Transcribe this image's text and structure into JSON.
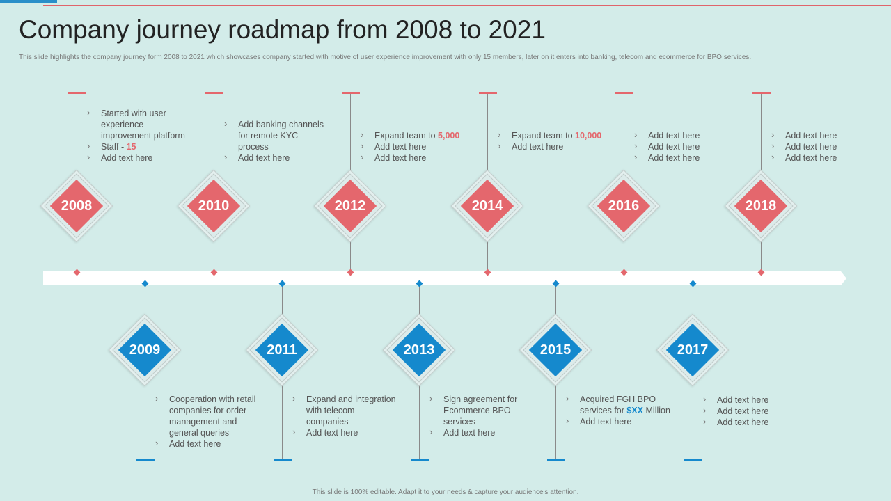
{
  "title": "Company journey roadmap from 2008 to 2021",
  "subtitle": "This slide highlights the company journey form 2008 to 2021 which showcases company started with motive of user experience improvement with only 15 members, later on it enters into banking, telecom and ecommerce for BPO  services.",
  "footer": "This slide is 100% editable.  Adapt it to your needs & capture your audience's attention.",
  "colors": {
    "background": "#d3ece9",
    "red": "#e4676d",
    "blue": "#1589cd",
    "bar": "#ffffff"
  },
  "milestones": [
    {
      "year": "2008",
      "color": "red",
      "items": [
        {
          "parts": [
            {
              "text": "Started with user experience improvement  platform"
            }
          ]
        },
        {
          "parts": [
            {
              "text": "Staff - "
            },
            {
              "text": "15",
              "hl": true
            }
          ]
        },
        {
          "parts": [
            {
              "text": "Add text here"
            }
          ]
        }
      ]
    },
    {
      "year": "2009",
      "color": "blue",
      "items": [
        {
          "parts": [
            {
              "text": "Cooperation  with retail companies for order management and general queries"
            }
          ]
        },
        {
          "parts": [
            {
              "text": "Add text here"
            }
          ]
        }
      ]
    },
    {
      "year": "2010",
      "color": "red",
      "items": [
        {
          "parts": [
            {
              "text": "Add banking channels for remote KYC process"
            }
          ]
        },
        {
          "parts": [
            {
              "text": "Add text here"
            }
          ]
        }
      ]
    },
    {
      "year": "2011",
      "color": "blue",
      "items": [
        {
          "parts": [
            {
              "text": "Expand and integration with telecom companies"
            }
          ]
        },
        {
          "parts": [
            {
              "text": "Add text here"
            }
          ]
        }
      ]
    },
    {
      "year": "2012",
      "color": "red",
      "items": [
        {
          "parts": [
            {
              "text": "Expand team to "
            },
            {
              "text": "5,000",
              "hl": true
            }
          ]
        },
        {
          "parts": [
            {
              "text": "Add text here"
            }
          ]
        },
        {
          "parts": [
            {
              "text": "Add text here"
            }
          ]
        }
      ]
    },
    {
      "year": "2013",
      "color": "blue",
      "items": [
        {
          "parts": [
            {
              "text": "Sign agreement for Ecommerce BPO services"
            }
          ]
        },
        {
          "parts": [
            {
              "text": "Add text here"
            }
          ]
        }
      ]
    },
    {
      "year": "2014",
      "color": "red",
      "items": [
        {
          "parts": [
            {
              "text": "Expand team to "
            },
            {
              "text": "10,000",
              "hl": true
            }
          ]
        },
        {
          "parts": [
            {
              "text": "Add text here"
            }
          ]
        }
      ]
    },
    {
      "year": "2015",
      "color": "blue",
      "items": [
        {
          "parts": [
            {
              "text": "Acquired FGH BPO services for "
            },
            {
              "text": "$XX",
              "hl": true
            },
            {
              "text": " Million"
            }
          ]
        },
        {
          "parts": [
            {
              "text": "Add text here"
            }
          ]
        }
      ]
    },
    {
      "year": "2016",
      "color": "red",
      "items": [
        {
          "parts": [
            {
              "text": "Add text here"
            }
          ]
        },
        {
          "parts": [
            {
              "text": "Add text here"
            }
          ]
        },
        {
          "parts": [
            {
              "text": "Add text here"
            }
          ]
        }
      ]
    },
    {
      "year": "2017",
      "color": "blue",
      "items": [
        {
          "parts": [
            {
              "text": "Add text here"
            }
          ]
        },
        {
          "parts": [
            {
              "text": "Add text here"
            }
          ]
        },
        {
          "parts": [
            {
              "text": "Add text here"
            }
          ]
        }
      ]
    },
    {
      "year": "2018",
      "color": "red",
      "items": [
        {
          "parts": [
            {
              "text": "Add text here"
            }
          ]
        },
        {
          "parts": [
            {
              "text": "Add text here"
            }
          ]
        },
        {
          "parts": [
            {
              "text": "Add text here"
            }
          ]
        }
      ]
    }
  ]
}
